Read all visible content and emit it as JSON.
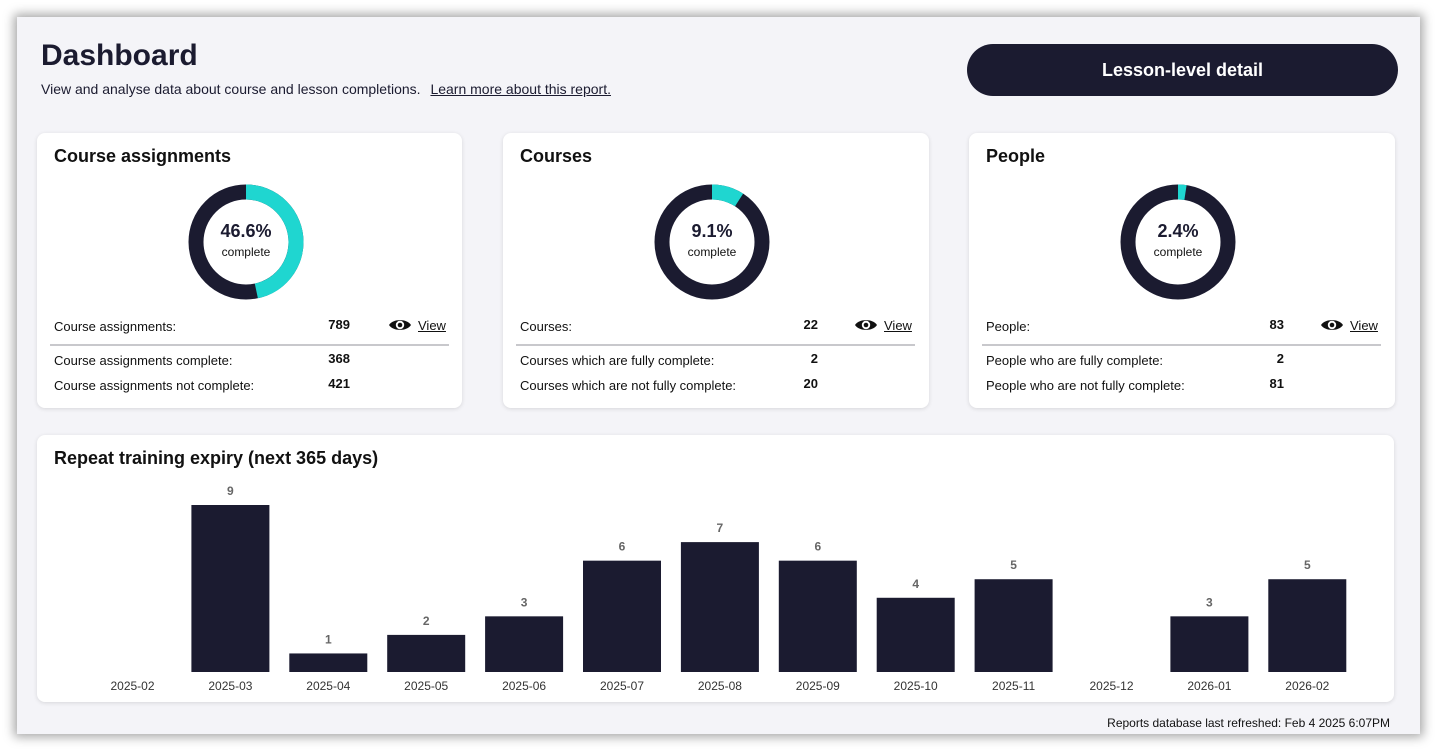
{
  "header": {
    "title": "Dashboard",
    "subtitle": "View and analyse data about course and lesson completions.",
    "learn_more": "Learn more about this report.",
    "detail_button": "Lesson-level detail"
  },
  "cards": [
    {
      "title": "Course assignments",
      "percent_text": "46.6%",
      "percent": 46.6,
      "complete_label": "complete",
      "total_label": "Course assignments:",
      "total_value": "789",
      "view_label": "View",
      "complete_row_label": "Course assignments complete:",
      "complete_row_value": "368",
      "not_complete_row_label": "Course assignments not complete:",
      "not_complete_row_value": "421"
    },
    {
      "title": "Courses",
      "percent_text": "9.1%",
      "percent": 9.1,
      "complete_label": "complete",
      "total_label": "Courses:",
      "total_value": "22",
      "view_label": "View",
      "complete_row_label": "Courses which are fully complete:",
      "complete_row_value": "2",
      "not_complete_row_label": "Courses which are not fully complete:",
      "not_complete_row_value": "20"
    },
    {
      "title": "People",
      "percent_text": "2.4%",
      "percent": 2.4,
      "complete_label": "complete",
      "total_label": "People:",
      "total_value": "83",
      "view_label": "View",
      "complete_row_label": "People who are fully complete:",
      "complete_row_value": "2",
      "not_complete_row_label": "People who are not fully complete:",
      "not_complete_row_value": "81"
    }
  ],
  "colors": {
    "accent": "#1fd6d0",
    "dark": "#1b1b30"
  },
  "icons": {
    "view": "eye-icon"
  },
  "chart_title": "Repeat training expiry (next 365 days)",
  "chart_data": {
    "type": "bar",
    "title": "Repeat training expiry (next 365 days)",
    "categories": [
      "2025-02",
      "2025-03",
      "2025-04",
      "2025-05",
      "2025-06",
      "2025-07",
      "2025-08",
      "2025-09",
      "2025-10",
      "2025-11",
      "2025-12",
      "2026-01",
      "2026-02"
    ],
    "values": [
      0,
      9,
      1,
      2,
      3,
      6,
      7,
      6,
      4,
      5,
      0,
      3,
      5
    ],
    "xlabel": "",
    "ylabel": "",
    "ylim": [
      0,
      9
    ],
    "grid": false
  },
  "footer": "Reports database last refreshed: Feb  4 2025  6:07PM"
}
